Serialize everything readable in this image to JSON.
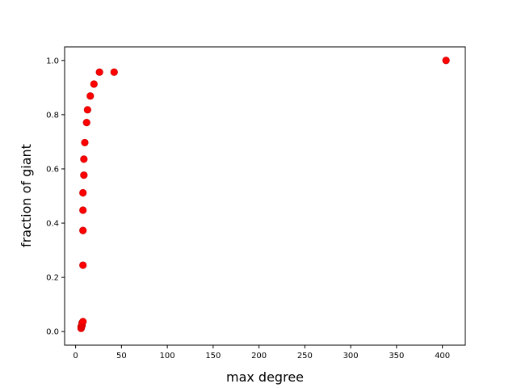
{
  "chart_data": {
    "type": "scatter",
    "title": "",
    "xlabel": "max degree",
    "ylabel": "fraction of giant",
    "xlim": [
      -12,
      425
    ],
    "ylim": [
      -0.05,
      1.05
    ],
    "xticks": [
      0,
      50,
      100,
      150,
      200,
      250,
      300,
      350,
      400
    ],
    "yticks": [
      0.0,
      0.2,
      0.4,
      0.6,
      0.8,
      1.0
    ],
    "ytick_labels": [
      "0.0",
      "0.2",
      "0.4",
      "0.6",
      "0.8",
      "1.0"
    ],
    "grid": false,
    "marker_color": "#ff0000",
    "marker_edge_color": "#cc0000",
    "series": [
      {
        "x": [
          6,
          6,
          7,
          7,
          7,
          8,
          8,
          8,
          8,
          8,
          9,
          9,
          10,
          12,
          13,
          16,
          20,
          26,
          42,
          404
        ],
        "y": [
          0.012,
          0.018,
          0.022,
          0.027,
          0.032,
          0.037,
          0.245,
          0.373,
          0.448,
          0.512,
          0.577,
          0.636,
          0.697,
          0.771,
          0.818,
          0.869,
          0.913,
          0.957,
          0.957,
          1.0
        ]
      }
    ]
  }
}
